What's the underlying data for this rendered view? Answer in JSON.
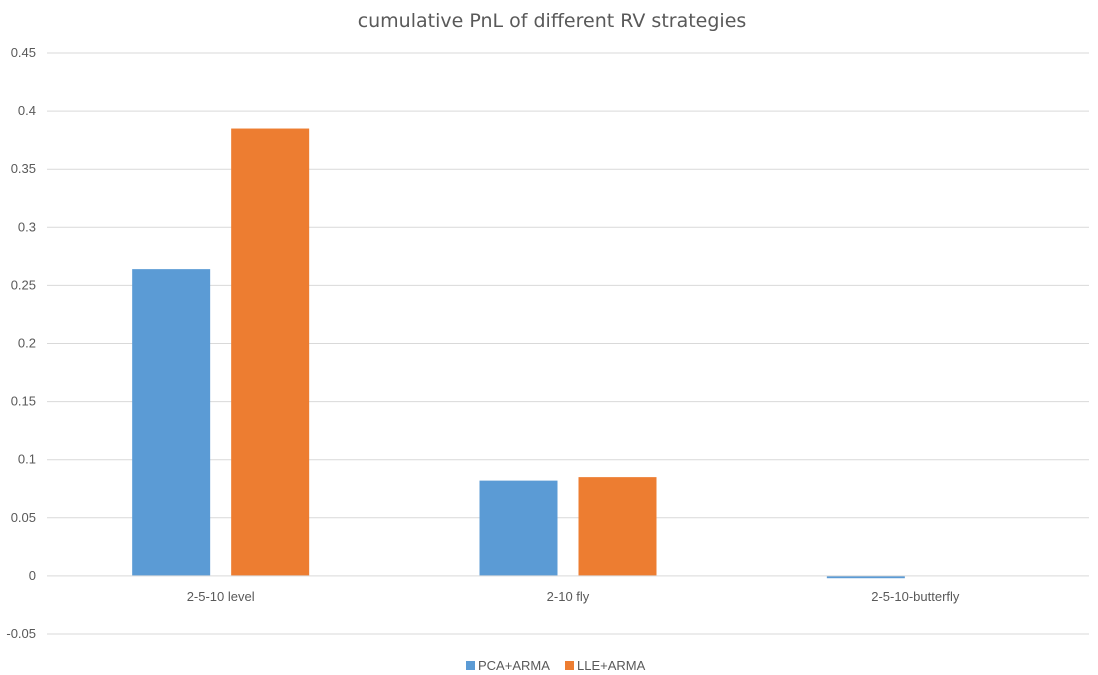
{
  "chart_data": {
    "type": "bar",
    "title": "cumulative PnL of different RV strategies",
    "xlabel": "",
    "ylabel": "",
    "categories": [
      "2-5-10 level",
      "2-10 fly",
      "2-5-10-butterfly"
    ],
    "series": [
      {
        "name": "PCA+ARMA",
        "color": "#5b9bd5",
        "values": [
          0.264,
          0.082,
          -0.002
        ]
      },
      {
        "name": "LLE+ARMA",
        "color": "#ed7d31",
        "values": [
          0.385,
          0.085,
          0.0
        ]
      }
    ],
    "ylim": [
      -0.05,
      0.45
    ],
    "yticks": [
      "0.45",
      "0.4",
      "0.35",
      "0.3",
      "0.25",
      "0.2",
      "0.15",
      "0.1",
      "0.05",
      "0",
      "-0.05"
    ],
    "grid": true,
    "legend": "bottom-center"
  }
}
